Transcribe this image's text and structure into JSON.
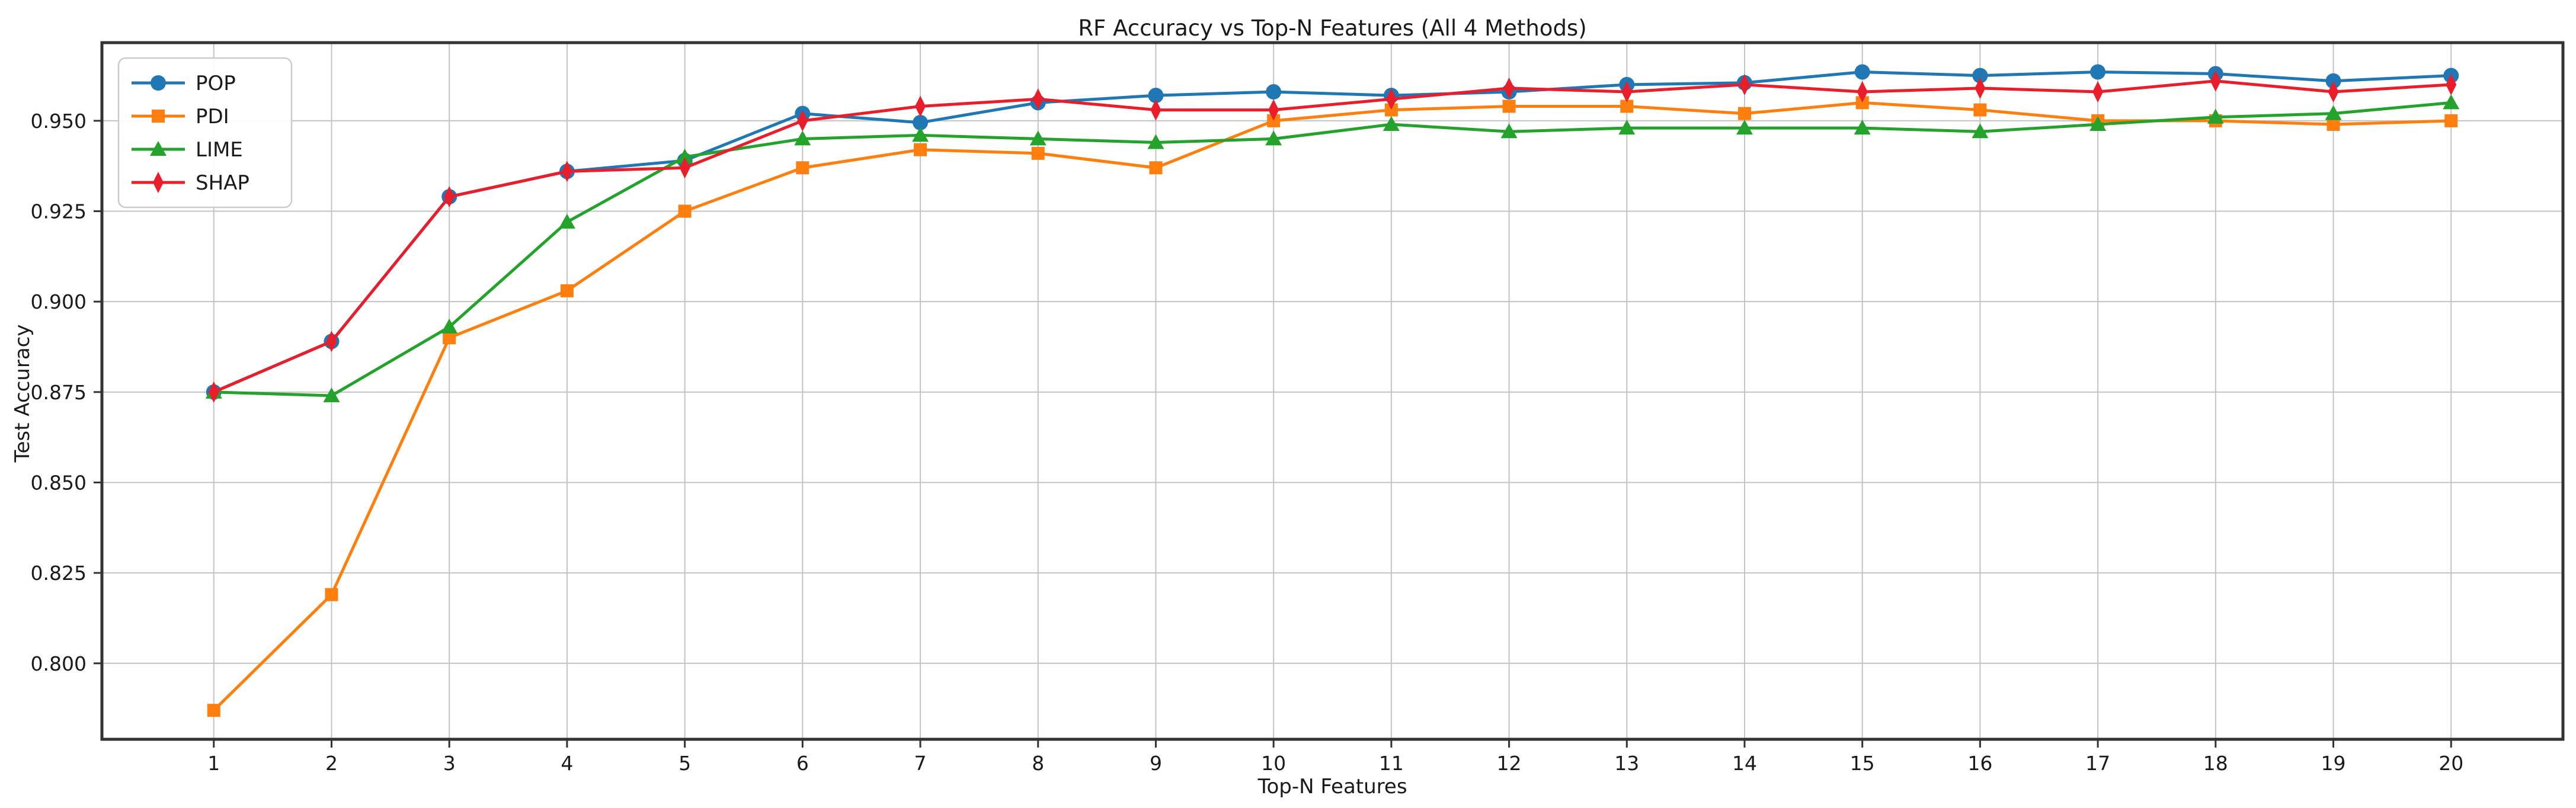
{
  "chart_data": {
    "type": "line",
    "title": "RF Accuracy vs Top-N Features (All 4 Methods)",
    "xlabel": "Top-N Features",
    "ylabel": "Test Accuracy",
    "x": [
      1,
      2,
      3,
      4,
      5,
      6,
      7,
      8,
      9,
      10,
      11,
      12,
      13,
      14,
      15,
      16,
      17,
      18,
      19,
      20
    ],
    "series": [
      {
        "name": "POP",
        "color": "#1f77b4",
        "marker": "circle",
        "values": [
          0.875,
          0.889,
          0.929,
          0.936,
          0.939,
          0.952,
          0.9495,
          0.955,
          0.957,
          0.958,
          0.957,
          0.958,
          0.96,
          0.9605,
          0.9635,
          0.9625,
          0.9635,
          0.963,
          0.961,
          0.9625
        ]
      },
      {
        "name": "PDI",
        "color": "#ff7f0e",
        "marker": "square",
        "values": [
          0.787,
          0.819,
          0.89,
          0.903,
          0.925,
          0.937,
          0.942,
          0.941,
          0.937,
          0.95,
          0.953,
          0.954,
          0.954,
          0.952,
          0.955,
          0.953,
          0.95,
          0.95,
          0.949,
          0.95
        ]
      },
      {
        "name": "LIME",
        "color": "#23a32c",
        "marker": "triangle",
        "values": [
          0.875,
          0.874,
          0.893,
          0.922,
          0.94,
          0.945,
          0.946,
          0.945,
          0.944,
          0.945,
          0.949,
          0.947,
          0.948,
          0.948,
          0.948,
          0.947,
          0.949,
          0.951,
          0.952,
          0.955
        ]
      },
      {
        "name": "SHAP",
        "color": "#ea1d2b",
        "marker": "thin-diamond",
        "values": [
          0.875,
          0.889,
          0.929,
          0.936,
          0.937,
          0.95,
          0.954,
          0.956,
          0.953,
          0.953,
          0.956,
          0.959,
          0.958,
          0.96,
          0.958,
          0.959,
          0.958,
          0.961,
          0.958,
          0.96
        ]
      }
    ],
    "xlim": [
      0.05,
      20.95
    ],
    "ylim": [
      0.779,
      0.9716
    ],
    "xticks": [
      1,
      2,
      3,
      4,
      5,
      6,
      7,
      8,
      9,
      10,
      11,
      12,
      13,
      14,
      15,
      16,
      17,
      18,
      19,
      20
    ],
    "yticks": [
      0.8,
      0.825,
      0.85,
      0.875,
      0.9,
      0.925,
      0.95
    ],
    "ytick_labels": [
      "0.800",
      "0.825",
      "0.850",
      "0.875",
      "0.900",
      "0.925",
      "0.950"
    ],
    "grid": true,
    "legend_position": "upper left",
    "colors": {
      "grid": "#c3c3c3",
      "spine": "#333333",
      "tick": "#333333",
      "text": "#1a1a1a",
      "legend_border": "#cccccc",
      "legend_bg": "#ffffff",
      "background": "#ffffff"
    }
  }
}
